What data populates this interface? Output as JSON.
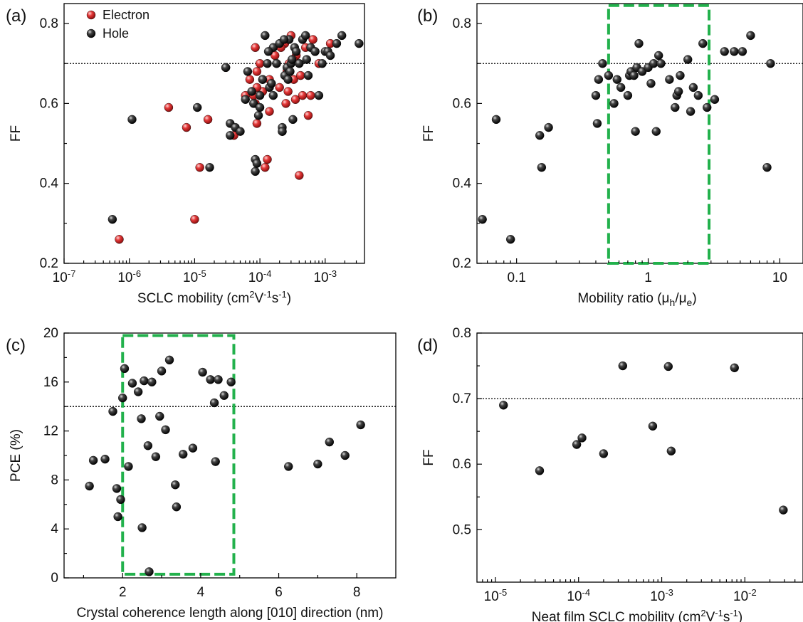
{
  "chart_data": [
    {
      "panel": "(a)",
      "type": "scatter",
      "xlabel": "SCLC mobility (cm²V⁻¹s⁻¹)",
      "ylabel": "FF",
      "xscale": "log",
      "xlim": [
        1e-07,
        0.004
      ],
      "ylim": [
        0.2,
        0.85
      ],
      "xticks": [
        1e-07,
        1e-06,
        1e-05,
        0.0001,
        0.001
      ],
      "xticklabels": [
        "10⁻⁷",
        "10⁻⁶",
        "10⁻⁵",
        "10⁻⁴",
        "10⁻³"
      ],
      "yticks": [
        0.2,
        0.4,
        0.6,
        0.8
      ],
      "yticklabels": [
        "0.2",
        "0.4",
        "0.6",
        "0.8"
      ],
      "ref_line": 0.7,
      "legend": "top-left",
      "series": [
        {
          "name": "Electron",
          "color": "#e03030",
          "x": [
            7e-07,
            4e-06,
            7.5e-06,
            1e-05,
            1.2e-05,
            1.6e-05,
            3e-05,
            4e-05,
            6e-05,
            7e-05,
            8e-05,
            8.5e-05,
            9e-05,
            0.0001,
            0.00011,
            0.00012,
            0.00014,
            0.00015,
            0.00017,
            0.0002,
            0.00022,
            0.00024,
            0.00026,
            0.00028,
            0.0003,
            0.00033,
            0.00036,
            0.0004,
            0.00045,
            0.0005,
            0.0006,
            0.0007,
            0.0008,
            0.0012,
            9e-05,
            0.00013,
            0.00025,
            0.00032,
            0.00042,
            0.00055,
            0.00065,
            8.5e-05,
            0.00011,
            0.00018,
            0.00021,
            0.00027,
            0.00035,
            9e-05,
            0.00014
          ],
          "y": [
            0.26,
            0.59,
            0.54,
            0.31,
            0.44,
            0.56,
            0.69,
            0.52,
            0.62,
            0.66,
            0.62,
            0.74,
            0.55,
            0.7,
            0.63,
            0.44,
            0.58,
            0.65,
            0.72,
            0.64,
            0.53,
            0.75,
            0.68,
            0.7,
            0.77,
            0.66,
            0.72,
            0.42,
            0.62,
            0.74,
            0.62,
            0.73,
            0.7,
            0.75,
            0.68,
            0.46,
            0.6,
            0.71,
            0.67,
            0.57,
            0.76,
            0.6,
            0.66,
            0.7,
            0.74,
            0.63,
            0.61,
            0.64,
            0.66
          ]
        },
        {
          "name": "Hole",
          "color": "#111111",
          "x": [
            5.5e-07,
            1.1e-06,
            1.1e-05,
            1.7e-05,
            3e-05,
            3.5e-05,
            3.5e-05,
            4.2e-05,
            5e-05,
            6e-05,
            6.5e-05,
            7.5e-05,
            8e-05,
            8.5e-05,
            8.5e-05,
            9e-05,
            9.5e-05,
            0.0001,
            0.00011,
            0.00012,
            0.00013,
            0.00014,
            0.00015,
            0.00016,
            0.00018,
            0.0002,
            0.00022,
            0.00024,
            0.00026,
            0.00028,
            0.0003,
            0.00032,
            0.00034,
            0.00036,
            0.0004,
            0.00045,
            0.0005,
            0.00055,
            0.0006,
            0.0007,
            0.0008,
            0.0009,
            0.001,
            0.0011,
            0.0012,
            0.0015,
            0.0018,
            0.0033,
            0.000135,
            0.00022,
            0.00027,
            0.00031,
            0.000235,
            0.00052,
            0.0001,
            0.00016,
            0.00029
          ],
          "y": [
            0.31,
            0.56,
            0.59,
            0.44,
            0.69,
            0.55,
            0.52,
            0.54,
            0.53,
            0.61,
            0.68,
            0.63,
            0.6,
            0.46,
            0.43,
            0.45,
            0.57,
            0.62,
            0.66,
            0.77,
            0.7,
            0.64,
            0.65,
            0.74,
            0.7,
            0.75,
            0.54,
            0.67,
            0.69,
            0.76,
            0.7,
            0.56,
            0.74,
            0.73,
            0.7,
            0.76,
            0.77,
            0.67,
            0.74,
            0.73,
            0.62,
            0.7,
            0.73,
            0.73,
            0.72,
            0.75,
            0.77,
            0.75,
            0.73,
            0.53,
            0.66,
            0.71,
            0.76,
            0.71,
            0.59,
            0.62,
            0.68
          ]
        }
      ]
    },
    {
      "panel": "(b)",
      "type": "scatter",
      "xlabel": "Mobility ratio (μh/μe)",
      "ylabel": "FF",
      "xscale": "log",
      "xlim": [
        0.05,
        15
      ],
      "ylim": [
        0.2,
        0.85
      ],
      "xticks": [
        0.1,
        1,
        10
      ],
      "xticklabels": [
        "0.1",
        "1",
        "10"
      ],
      "yticks": [
        0.2,
        0.4,
        0.6,
        0.8
      ],
      "yticklabels": [
        "0.2",
        "0.4",
        "0.6",
        "0.8"
      ],
      "ref_line": 0.7,
      "highlight": {
        "x0": 0.5,
        "x1": 2.9,
        "y0": 0.2,
        "y1": 0.845
      },
      "series": [
        {
          "color": "#111111",
          "x": [
            0.055,
            0.07,
            0.09,
            0.15,
            0.155,
            0.175,
            0.4,
            0.41,
            0.42,
            0.45,
            0.5,
            0.55,
            0.62,
            0.7,
            0.72,
            0.74,
            0.8,
            0.82,
            0.85,
            0.9,
            1.0,
            1.05,
            1.1,
            1.15,
            1.2,
            1.25,
            1.45,
            1.6,
            1.65,
            1.7,
            1.75,
            2.0,
            2.1,
            2.2,
            2.4,
            2.6,
            2.8,
            3.2,
            3.8,
            4.5,
            5.2,
            6.0,
            8.0,
            8.5,
            0.78,
            0.58
          ],
          "y": [
            0.31,
            0.56,
            0.26,
            0.52,
            0.44,
            0.54,
            0.62,
            0.55,
            0.66,
            0.7,
            0.67,
            0.6,
            0.64,
            0.62,
            0.67,
            0.68,
            0.53,
            0.69,
            0.75,
            0.68,
            0.69,
            0.65,
            0.7,
            0.53,
            0.72,
            0.7,
            0.66,
            0.59,
            0.62,
            0.63,
            0.67,
            0.71,
            0.58,
            0.64,
            0.62,
            0.75,
            0.59,
            0.61,
            0.73,
            0.73,
            0.73,
            0.77,
            0.44,
            0.7,
            0.67,
            0.66
          ]
        }
      ]
    },
    {
      "panel": "(c)",
      "type": "scatter",
      "xlabel": "Crystal coherence length along [010] direction (nm)",
      "ylabel": "PCE (%)",
      "xscale": "linear",
      "xlim": [
        0.5,
        9
      ],
      "ylim": [
        0,
        20
      ],
      "xticks": [
        2,
        4,
        6,
        8
      ],
      "xticklabels": [
        "2",
        "4",
        "6",
        "8"
      ],
      "yticks": [
        0,
        4,
        8,
        12,
        16,
        20
      ],
      "yticklabels": [
        "0",
        "4",
        "8",
        "12",
        "16",
        "20"
      ],
      "ref_line": 14,
      "highlight": {
        "x0": 2.0,
        "x1": 4.85,
        "y0": 0.3,
        "y1": 19.8
      },
      "series": [
        {
          "color": "#111111",
          "x": [
            1.15,
            1.25,
            1.55,
            1.75,
            1.85,
            1.88,
            1.95,
            2.0,
            2.05,
            2.15,
            2.25,
            2.4,
            2.48,
            2.5,
            2.55,
            2.65,
            2.68,
            2.75,
            2.85,
            2.95,
            3.0,
            3.1,
            3.2,
            3.35,
            3.38,
            3.55,
            3.8,
            4.05,
            4.25,
            4.35,
            4.38,
            4.45,
            4.6,
            4.78,
            6.25,
            7.0,
            7.3,
            7.7,
            8.1
          ],
          "y": [
            7.5,
            9.6,
            9.7,
            13.6,
            7.3,
            5.0,
            6.4,
            14.7,
            17.1,
            9.1,
            15.9,
            15.2,
            13.0,
            4.1,
            16.1,
            10.8,
            0.5,
            16.0,
            9.9,
            13.2,
            16.9,
            12.1,
            17.8,
            7.6,
            5.8,
            10.1,
            10.6,
            16.8,
            16.2,
            14.3,
            9.5,
            16.2,
            14.9,
            16.0,
            9.1,
            9.3,
            11.1,
            10.0,
            12.5
          ]
        }
      ]
    },
    {
      "panel": "(d)",
      "type": "scatter",
      "xlabel": "Neat film SCLC mobility (cm²V⁻¹s⁻¹)",
      "ylabel": "FF",
      "xscale": "log",
      "xlim": [
        6e-06,
        0.05
      ],
      "ylim": [
        0.42,
        0.8
      ],
      "xticks": [
        1e-05,
        0.0001,
        0.001,
        0.01
      ],
      "xticklabels": [
        "10⁻⁵",
        "10⁻⁴",
        "10⁻³",
        "10⁻²"
      ],
      "yticks": [
        0.5,
        0.6,
        0.7,
        0.8
      ],
      "yticklabels": [
        "0.5",
        "0.6",
        "0.7",
        "0.8"
      ],
      "ref_line": 0.7,
      "series": [
        {
          "color": "#111111",
          "x": [
            1.25e-05,
            3.4e-05,
            9.5e-05,
            0.00011,
            0.0002,
            0.00034,
            0.00078,
            0.0012,
            0.0013,
            0.0075,
            0.029
          ],
          "y": [
            0.69,
            0.59,
            0.63,
            0.64,
            0.616,
            0.75,
            0.658,
            0.749,
            0.62,
            0.747,
            0.53
          ]
        }
      ]
    }
  ]
}
